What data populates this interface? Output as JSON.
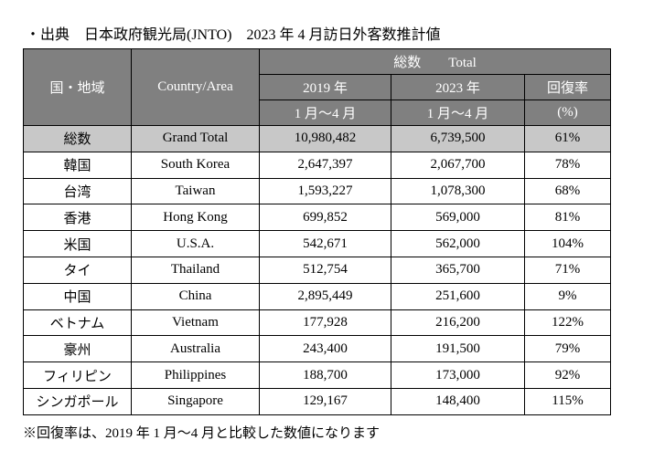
{
  "header": {
    "title": "・出典　日本政府観光局(JNTO)　2023 年 4 月訪日外客数推計値"
  },
  "table": {
    "columns": {
      "region": "国・地域",
      "country": "Country/Area",
      "total": "総数　　Total",
      "y2019": "2019 年",
      "y2023": "2023 年",
      "rate": "回復率",
      "period2019": "1 月～4 月",
      "period2023": "1 月～4 月",
      "rate_unit": "(%)"
    },
    "rows": [
      [
        "総数",
        "Grand Total",
        "10,980,482",
        "6,739,500",
        "61%"
      ],
      [
        "韓国",
        "South Korea",
        "2,647,397",
        "2,067,700",
        "78%"
      ],
      [
        "台湾",
        "Taiwan",
        "1,593,227",
        "1,078,300",
        "68%"
      ],
      [
        "香港",
        "Hong Kong",
        "699,852",
        "569,000",
        "81%"
      ],
      [
        "米国",
        "U.S.A.",
        "542,671",
        "562,000",
        "104%"
      ],
      [
        "タイ",
        "Thailand",
        "512,754",
        "365,700",
        "71%"
      ],
      [
        "中国",
        "China",
        "2,895,449",
        "251,600",
        "9%"
      ],
      [
        "ベトナム",
        "Vietnam",
        "177,928",
        "216,200",
        "122%"
      ],
      [
        "豪州",
        "Australia",
        "243,400",
        "191,500",
        "79%"
      ],
      [
        "フィリピン",
        "Philippines",
        "188,700",
        "173,000",
        "92%"
      ],
      [
        "シンガポール",
        "Singapore",
        "129,167",
        "148,400",
        "115%"
      ]
    ]
  },
  "footnote": "※回復率は、2019 年 1 月～4 月と比較した数値になります"
}
